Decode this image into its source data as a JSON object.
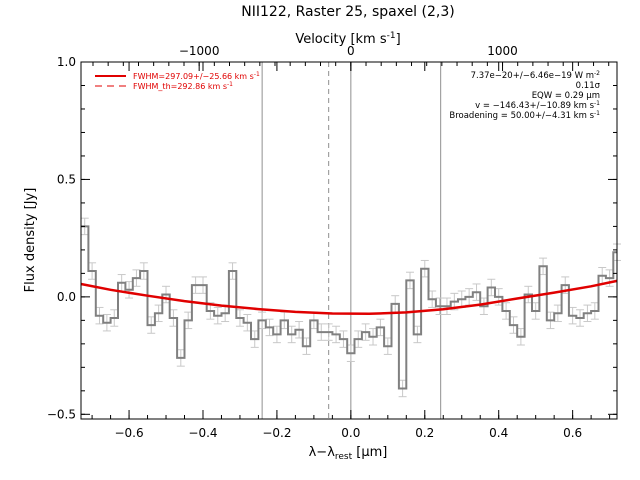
{
  "chart_data": {
    "type": "line",
    "title": "NII122, Raster 25, spaxel (2,3)",
    "xlabel": "λ−λ",
    "xlabel_subscript": "rest",
    "xlabel_unit": " [μm]",
    "ylabel": "Flux density [Jy]",
    "top_axis_label": "Velocity [km s",
    "top_axis_label_sup": "-1",
    "top_axis_label_end": "]",
    "xlim": [
      -0.73,
      0.72
    ],
    "ylim": [
      -0.52,
      1.0
    ],
    "x_ticks": [
      -0.6,
      -0.4,
      -0.2,
      0.0,
      0.2,
      0.4,
      0.6
    ],
    "x_tick_labels": [
      "−0.6",
      "−0.4",
      "−0.2",
      "0.0",
      "0.2",
      "0.4",
      "0.6"
    ],
    "y_ticks": [
      -0.5,
      0.0,
      0.5,
      1.0
    ],
    "y_tick_labels": [
      "−0.5",
      "0.0",
      "0.5",
      "1.0"
    ],
    "top_ticks": [
      -1000,
      0,
      1000
    ],
    "top_tick_labels": [
      "−1000",
      "0",
      "1000"
    ],
    "velocity_per_micron": 2437,
    "vertical_lines": [
      {
        "x": -0.24,
        "style": "solid"
      },
      {
        "x": 0.0,
        "style": "solid"
      },
      {
        "x": 0.243,
        "style": "solid"
      },
      {
        "x": -0.06,
        "style": "dashed"
      }
    ],
    "series": [
      {
        "name": "spectrum",
        "style": "step",
        "color": "#808080",
        "x": [
          -0.72,
          -0.7,
          -0.68,
          -0.66,
          -0.64,
          -0.62,
          -0.6,
          -0.58,
          -0.56,
          -0.54,
          -0.52,
          -0.5,
          -0.48,
          -0.46,
          -0.44,
          -0.42,
          -0.4,
          -0.38,
          -0.36,
          -0.34,
          -0.32,
          -0.3,
          -0.28,
          -0.26,
          -0.24,
          -0.22,
          -0.2,
          -0.18,
          -0.16,
          -0.14,
          -0.12,
          -0.1,
          -0.08,
          -0.06,
          -0.04,
          -0.02,
          0.0,
          0.02,
          0.04,
          0.06,
          0.08,
          0.1,
          0.12,
          0.14,
          0.16,
          0.18,
          0.2,
          0.22,
          0.24,
          0.26,
          0.28,
          0.3,
          0.32,
          0.34,
          0.36,
          0.38,
          0.4,
          0.42,
          0.44,
          0.46,
          0.48,
          0.5,
          0.52,
          0.54,
          0.56,
          0.58,
          0.6,
          0.62,
          0.64,
          0.66,
          0.68,
          0.7,
          0.72
        ],
        "y": [
          0.3,
          0.11,
          -0.08,
          -0.11,
          -0.09,
          0.06,
          0.03,
          0.08,
          0.11,
          -0.12,
          -0.07,
          0.01,
          -0.09,
          -0.26,
          -0.1,
          0.05,
          0.05,
          -0.06,
          -0.08,
          -0.07,
          0.11,
          -0.09,
          -0.11,
          -0.18,
          -0.1,
          -0.13,
          -0.16,
          -0.1,
          -0.16,
          -0.14,
          -0.21,
          -0.1,
          -0.15,
          -0.15,
          -0.16,
          -0.18,
          -0.24,
          -0.18,
          -0.15,
          -0.17,
          -0.13,
          -0.21,
          -0.03,
          -0.39,
          0.07,
          -0.16,
          0.12,
          -0.01,
          -0.04,
          -0.04,
          -0.02,
          -0.01,
          0.0,
          0.02,
          -0.04,
          0.04,
          0.0,
          -0.06,
          -0.12,
          -0.17,
          0.01,
          -0.06,
          0.13,
          -0.1,
          -0.07,
          0.05,
          -0.08,
          -0.09,
          -0.07,
          -0.06,
          0.09,
          0.08,
          0.19
        ],
        "error": 0.035
      },
      {
        "name": "fit",
        "style": "line",
        "color": "#e00000",
        "x": [
          -0.73,
          -0.65,
          -0.55,
          -0.45,
          -0.35,
          -0.25,
          -0.15,
          -0.05,
          0.05,
          0.15,
          0.25,
          0.35,
          0.45,
          0.55,
          0.65,
          0.72
        ],
        "y": [
          0.055,
          0.03,
          0.005,
          -0.018,
          -0.037,
          -0.052,
          -0.064,
          -0.071,
          -0.072,
          -0.066,
          -0.053,
          -0.033,
          -0.007,
          0.018,
          0.045,
          0.068
        ]
      }
    ],
    "legend": {
      "placement": "top-left",
      "entries": [
        {
          "label": "FWHM=297.09+/−25.66 km s",
          "sup": "-1",
          "style": "solid",
          "color": "#e00000"
        },
        {
          "label": "FWHM_th=292.86 km s",
          "sup": "-1",
          "style": "dashed",
          "color": "#e00000"
        }
      ]
    },
    "annotations": [
      {
        "text": "7.37e−20+/−6.46e−19 W m",
        "sup": "-2"
      },
      {
        "text": "0.11σ",
        "sup": ""
      },
      {
        "text": "EQW = 0.29 μm",
        "sup": ""
      },
      {
        "text": "v = −146.43+/−10.89 km s",
        "sup": "-1"
      },
      {
        "text": "Broadening = 50.00+/−4.31 km s",
        "sup": "-1"
      }
    ],
    "grid": false
  }
}
